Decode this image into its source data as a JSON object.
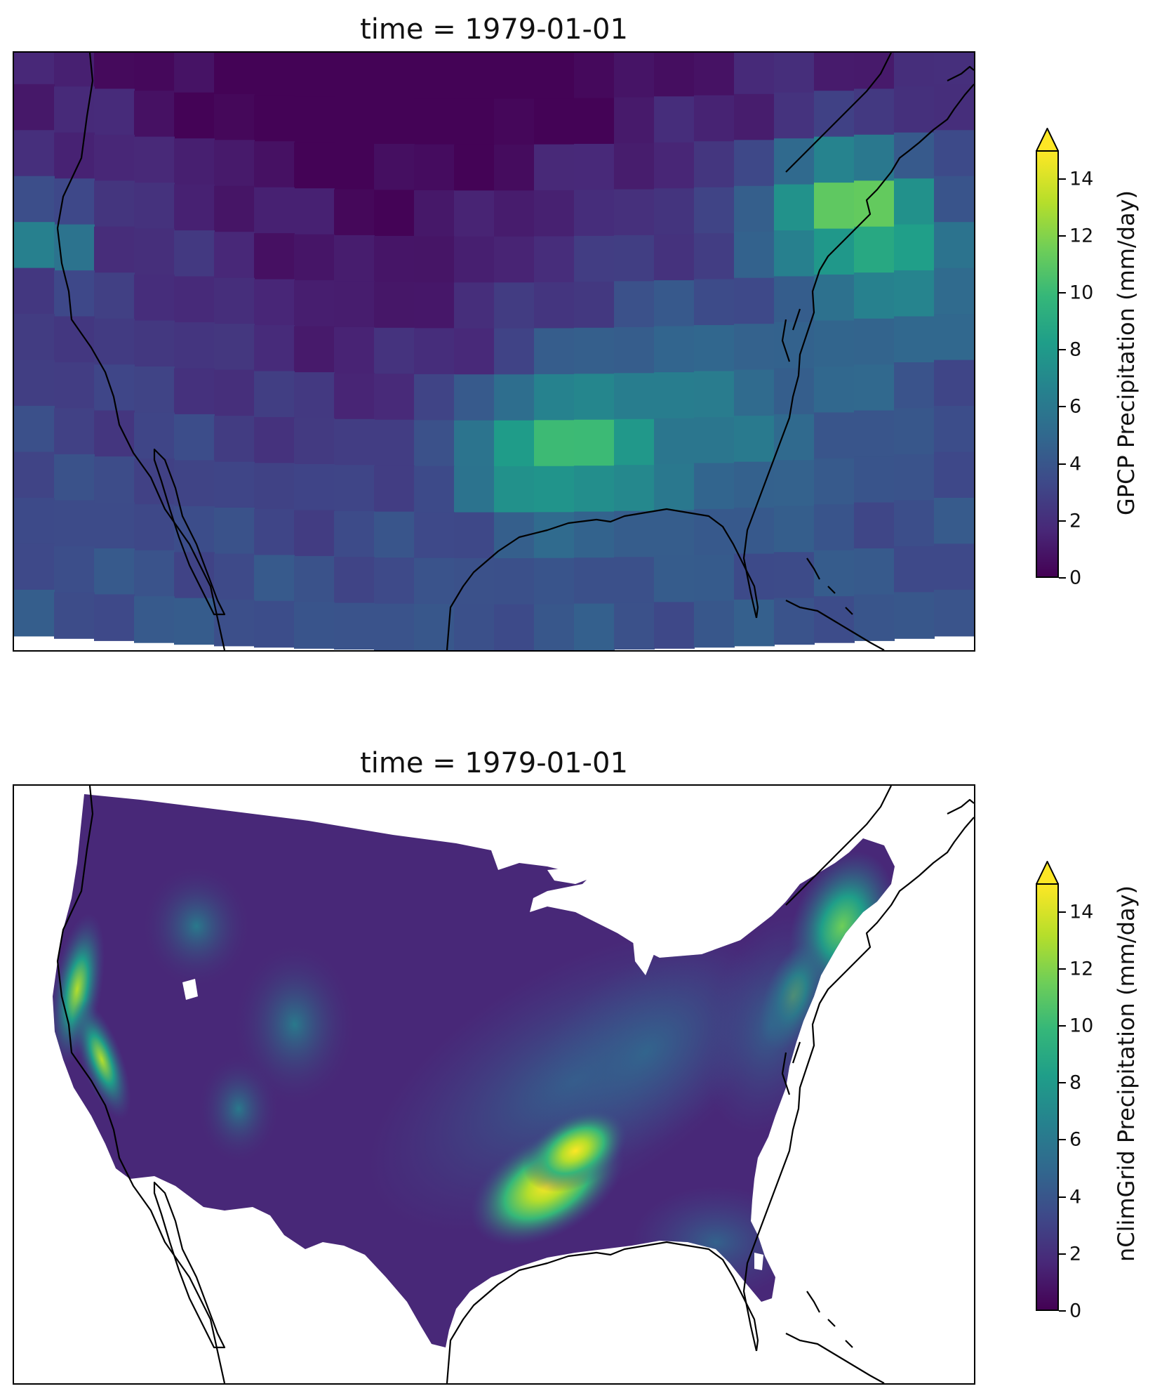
{
  "panels": [
    {
      "title": "time = 1979-01-01",
      "colorbar_label": "GPCP Precipitation (mm/day)",
      "colorbar_ticks": [
        "0",
        "2",
        "4",
        "6",
        "8",
        "10",
        "12",
        "14"
      ],
      "colorbar_max": 15,
      "colorbar_extend": "max",
      "colormap": "viridis"
    },
    {
      "title": "time = 1979-01-01",
      "colorbar_label": "nClimGrid Precipitation (mm/day)",
      "colorbar_ticks": [
        "0",
        "2",
        "4",
        "6",
        "8",
        "10",
        "12",
        "14"
      ],
      "colorbar_max": 15,
      "colorbar_extend": "max",
      "colormap": "viridis"
    }
  ],
  "colors": {
    "viridis_0": "#440154",
    "viridis_2": "#482878",
    "viridis_4": "#3e4989",
    "viridis_6": "#31688e",
    "viridis_8": "#26828e",
    "viridis_10": "#1f9e89",
    "viridis_12": "#6ece58",
    "viridis_14": "#b5de2b",
    "viridis_max": "#fde725",
    "coastline": "#000000"
  }
}
